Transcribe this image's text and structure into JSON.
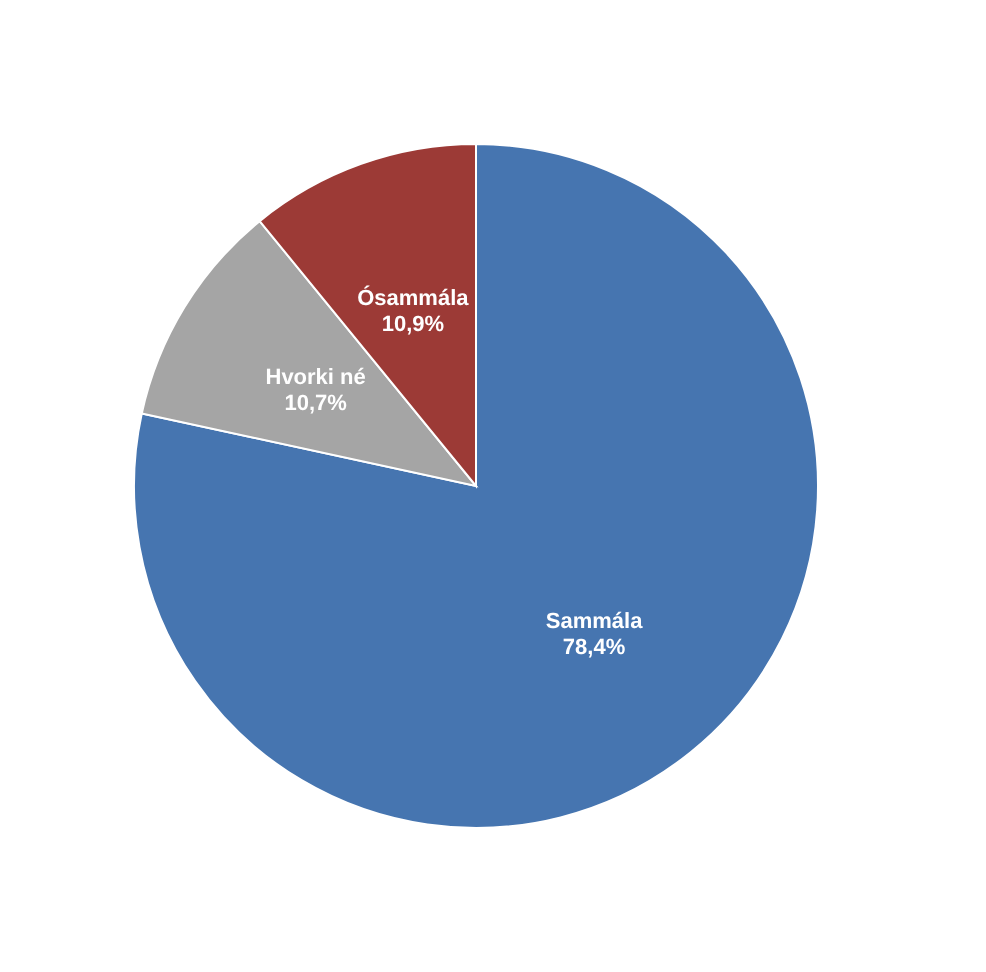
{
  "chart_data": {
    "type": "pie",
    "categories": [
      "Sammála",
      "Hvorki né",
      "Ósammála"
    ],
    "values": [
      78.4,
      10.7,
      10.9
    ],
    "colors": [
      "#4675b0",
      "#a5a5a5",
      "#9c3a36"
    ],
    "value_labels": [
      "78,4%",
      "10,7%",
      "10,9%"
    ]
  }
}
